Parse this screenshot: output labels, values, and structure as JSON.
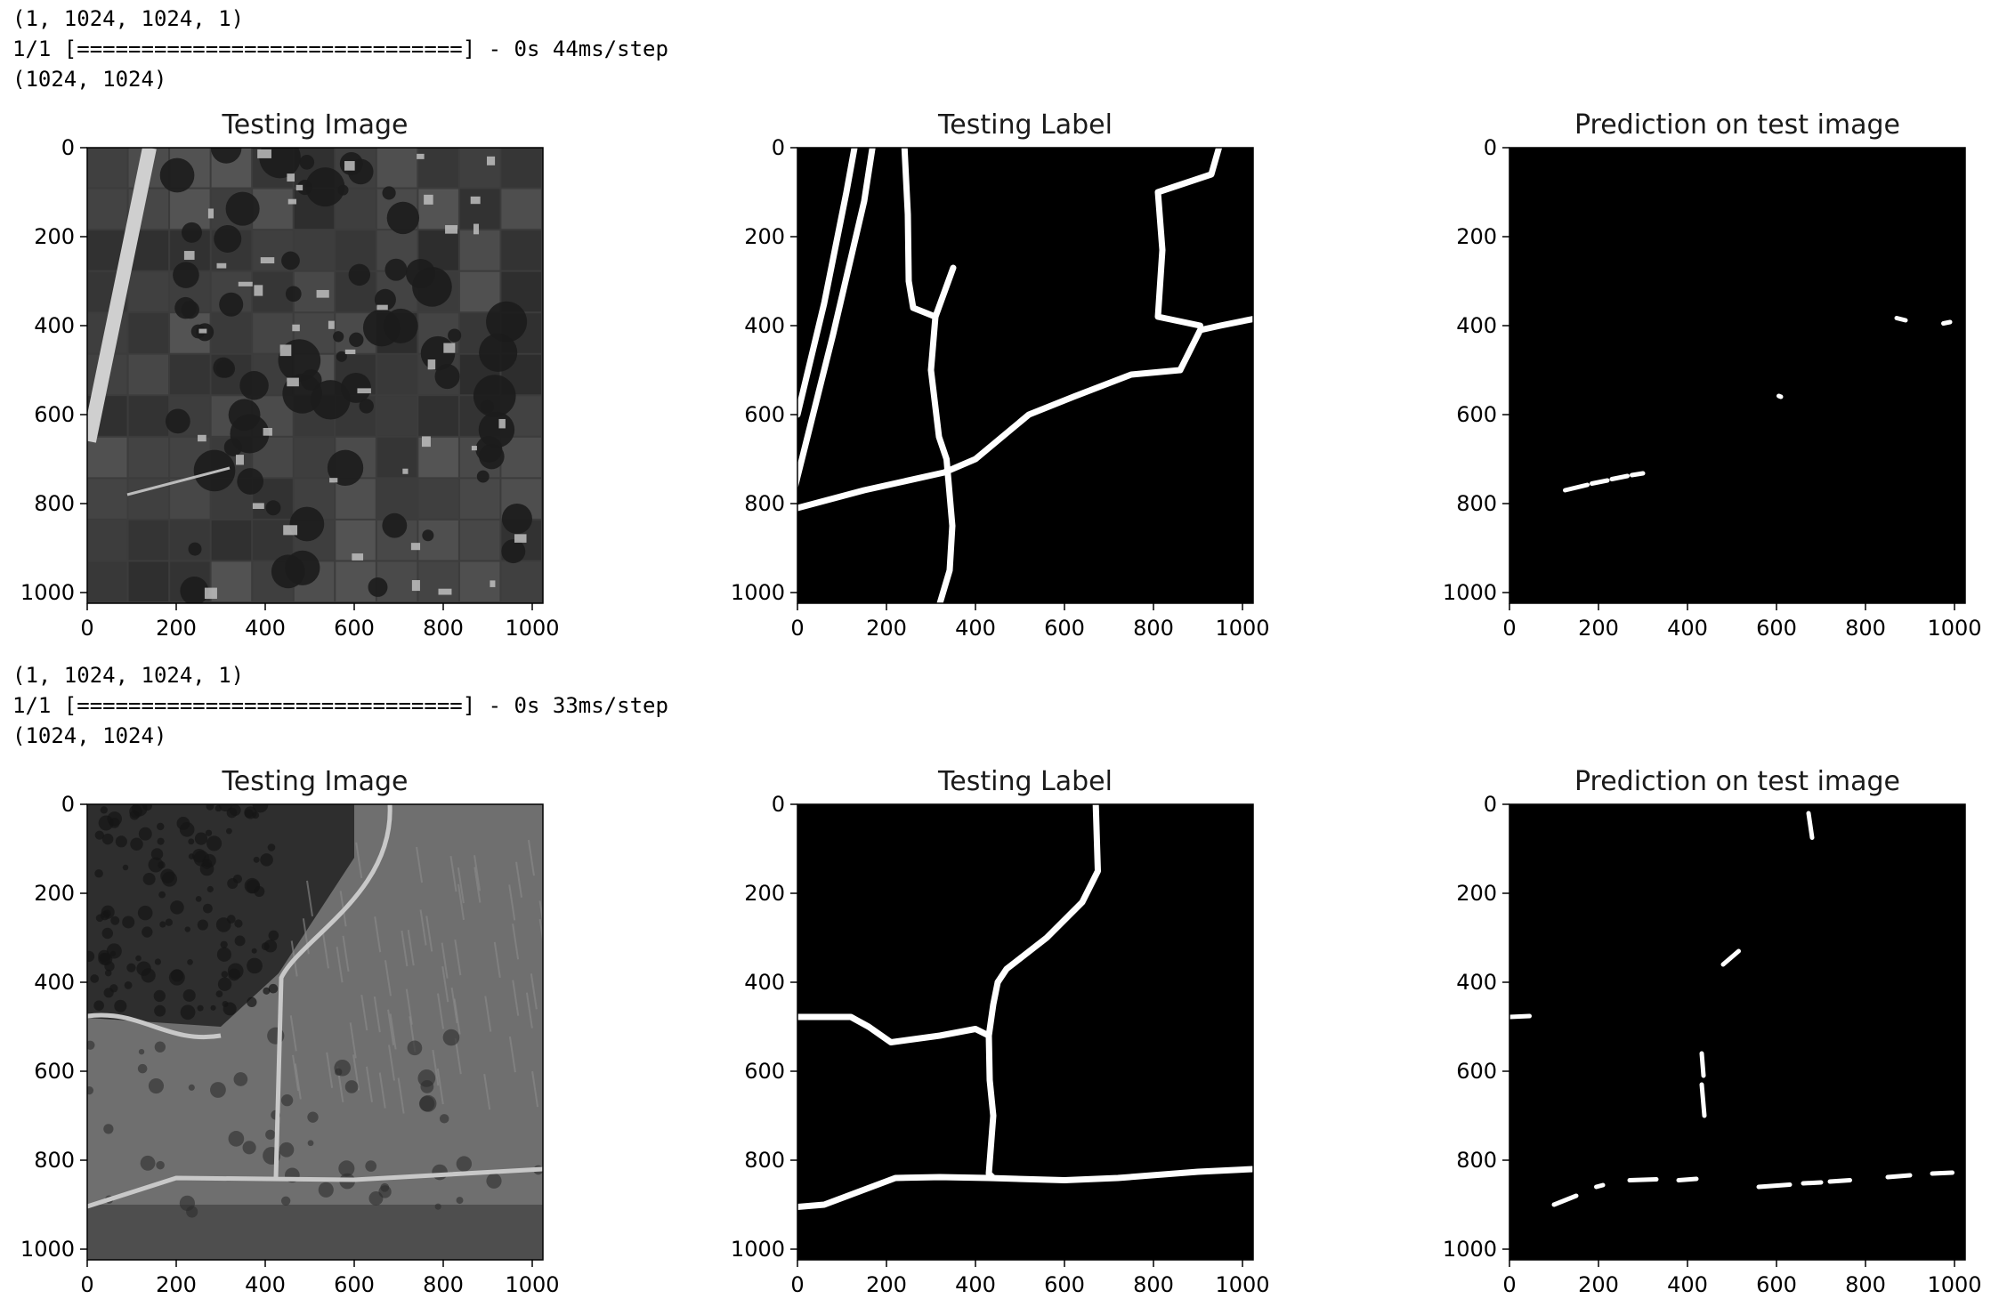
{
  "outputs": [
    {
      "console": [
        "(1, 1024, 1024, 1)",
        "1/1 [==============================] - 0s 44ms/step",
        "(1024, 1024)"
      ],
      "panels": [
        {
          "title": "Testing Image",
          "kind": "aerial-photo-village"
        },
        {
          "title": "Testing Label",
          "kind": "road-mask"
        },
        {
          "title": "Prediction on test image",
          "kind": "prediction-mask"
        }
      ]
    },
    {
      "console": [
        "(1, 1024, 1024, 1)",
        "1/1 [==============================] - 0s 33ms/step",
        "(1024, 1024)"
      ],
      "panels": [
        {
          "title": "Testing Image",
          "kind": "aerial-photo-forest"
        },
        {
          "title": "Testing Label",
          "kind": "road-mask"
        },
        {
          "title": "Prediction on test image",
          "kind": "prediction-mask"
        }
      ]
    }
  ],
  "chart_data": [
    {
      "type": "heatmap",
      "panel": "Testing Image",
      "xlim": [
        0,
        1024
      ],
      "ylim": [
        1024,
        0
      ],
      "xticks": [
        0,
        200,
        400,
        600,
        800,
        1000
      ],
      "yticks": [
        0,
        200,
        400,
        600,
        800,
        1000
      ]
    },
    {
      "type": "heatmap",
      "panel": "Testing Label",
      "xlim": [
        0,
        1024
      ],
      "ylim": [
        1024,
        0
      ],
      "xticks": [
        0,
        200,
        400,
        600,
        800,
        1000
      ],
      "yticks": [
        0,
        200,
        400,
        600,
        800,
        1000
      ]
    },
    {
      "type": "heatmap",
      "panel": "Prediction on test image",
      "xlim": [
        0,
        1024
      ],
      "ylim": [
        1024,
        0
      ],
      "xticks": [
        0,
        200,
        400,
        600,
        800,
        1000
      ],
      "yticks": [
        0,
        200,
        400,
        600,
        800,
        1000
      ]
    }
  ],
  "overlays": [
    {
      "label_roads": [
        [
          [
            0,
            600
          ],
          [
            60,
            350
          ],
          [
            110,
            100
          ],
          [
            130,
            -10
          ]
        ],
        [
          [
            -5,
            760
          ],
          [
            80,
            420
          ],
          [
            150,
            120
          ],
          [
            170,
            -10
          ]
        ],
        [
          [
            240,
            -10
          ],
          [
            248,
            150
          ],
          [
            250,
            300
          ],
          [
            260,
            360
          ],
          [
            310,
            380
          ],
          [
            350,
            270
          ]
        ],
        [
          [
            310,
            380
          ],
          [
            300,
            500
          ],
          [
            318,
            650
          ],
          [
            335,
            700
          ],
          [
            348,
            850
          ],
          [
            342,
            950
          ],
          [
            320,
            1024
          ]
        ],
        [
          [
            0,
            810
          ],
          [
            150,
            770
          ],
          [
            330,
            730
          ],
          [
            400,
            700
          ],
          [
            520,
            600
          ],
          [
            620,
            560
          ],
          [
            750,
            510
          ],
          [
            860,
            500
          ]
        ],
        [
          [
            860,
            500
          ],
          [
            905,
            410
          ],
          [
            950,
            400
          ],
          [
            1024,
            385
          ]
        ],
        [
          [
            950,
            -10
          ],
          [
            930,
            60
          ],
          [
            810,
            100
          ],
          [
            820,
            230
          ],
          [
            810,
            380
          ],
          [
            905,
            400
          ]
        ]
      ],
      "pred_blobs": [
        [
          [
            125,
            770
          ],
          [
            175,
            758
          ]
        ],
        [
          [
            185,
            755
          ],
          [
            220,
            748
          ]
        ],
        [
          [
            230,
            745
          ],
          [
            265,
            738
          ]
        ],
        [
          [
            275,
            736
          ],
          [
            300,
            732
          ]
        ],
        [
          [
            870,
            383
          ],
          [
            890,
            388
          ]
        ],
        [
          [
            975,
            395
          ],
          [
            990,
            392
          ]
        ],
        [
          [
            605,
            558
          ],
          [
            610,
            560
          ]
        ]
      ]
    },
    {
      "label_roads": [
        [
          [
            670,
            -10
          ],
          [
            675,
            150
          ],
          [
            640,
            220
          ],
          [
            560,
            300
          ],
          [
            470,
            370
          ],
          [
            450,
            400
          ]
        ],
        [
          [
            450,
            400
          ],
          [
            440,
            450
          ],
          [
            430,
            520
          ],
          [
            432,
            620
          ],
          [
            440,
            700
          ],
          [
            430,
            830
          ],
          [
            440,
            840
          ]
        ],
        [
          [
            0,
            478
          ],
          [
            120,
            478
          ],
          [
            160,
            500
          ],
          [
            210,
            535
          ],
          [
            320,
            520
          ],
          [
            400,
            505
          ],
          [
            430,
            520
          ]
        ],
        [
          [
            0,
            905
          ],
          [
            60,
            900
          ],
          [
            140,
            870
          ],
          [
            220,
            840
          ],
          [
            320,
            838
          ],
          [
            430,
            840
          ],
          [
            600,
            845
          ],
          [
            720,
            840
          ],
          [
            900,
            826
          ],
          [
            1024,
            820
          ]
        ]
      ],
      "pred_blobs": [
        [
          [
            672,
            20
          ],
          [
            680,
            75
          ]
        ],
        [
          [
            480,
            360
          ],
          [
            515,
            330
          ]
        ],
        [
          [
            0,
            478
          ],
          [
            45,
            476
          ]
        ],
        [
          [
            432,
            560
          ],
          [
            436,
            610
          ]
        ],
        [
          [
            432,
            630
          ],
          [
            438,
            700
          ]
        ],
        [
          [
            100,
            900
          ],
          [
            150,
            880
          ]
        ],
        [
          [
            195,
            860
          ],
          [
            210,
            856
          ]
        ],
        [
          [
            270,
            845
          ],
          [
            330,
            843
          ]
        ],
        [
          [
            380,
            845
          ],
          [
            420,
            842
          ]
        ],
        [
          [
            560,
            860
          ],
          [
            630,
            855
          ]
        ],
        [
          [
            660,
            852
          ],
          [
            700,
            850
          ]
        ],
        [
          [
            720,
            848
          ],
          [
            765,
            845
          ]
        ],
        [
          [
            850,
            838
          ],
          [
            900,
            834
          ]
        ],
        [
          [
            950,
            830
          ],
          [
            995,
            828
          ]
        ]
      ]
    }
  ]
}
